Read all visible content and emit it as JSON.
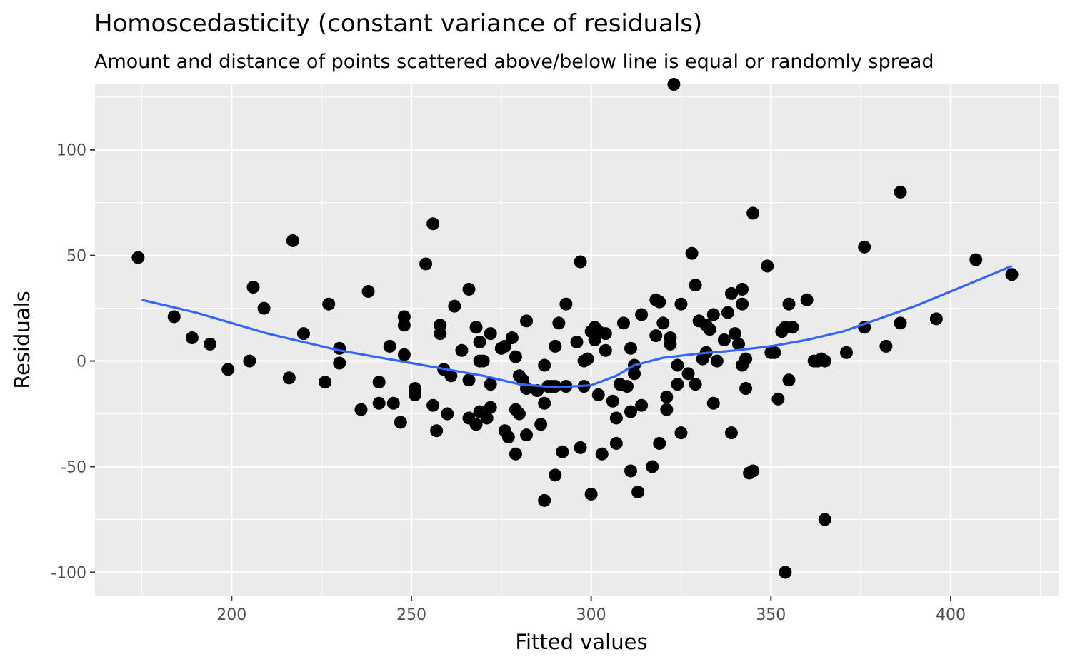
{
  "chart_data": {
    "type": "scatter",
    "title": "Homoscedasticity (constant variance of residuals)",
    "subtitle": "Amount and distance of points scattered above/below line is equal or randomly spread",
    "xlabel": "Fitted values",
    "ylabel": "Residuals",
    "xlim": [
      162,
      430
    ],
    "ylim": [
      -111,
      131
    ],
    "x_ticks": [
      200,
      250,
      300,
      350,
      400
    ],
    "x_tick_labels": [
      "200",
      "250",
      "300",
      "350",
      "400"
    ],
    "y_ticks": [
      -100,
      -50,
      0,
      50,
      100
    ],
    "y_tick_labels": [
      "-100",
      "-50",
      "0",
      "50",
      "100"
    ],
    "grid": true,
    "legend": "none",
    "colors": {
      "panel": "#ebebeb",
      "grid": "#ffffff",
      "points": "#000000",
      "smooth": "#3366ff"
    },
    "series": [
      {
        "type": "scatter",
        "points": [
          [
            174,
            49
          ],
          [
            184,
            21
          ],
          [
            189,
            11
          ],
          [
            194,
            8
          ],
          [
            199,
            -4
          ],
          [
            205,
            0
          ],
          [
            206,
            35
          ],
          [
            209,
            25
          ],
          [
            216,
            -8
          ],
          [
            217,
            57
          ],
          [
            220,
            13
          ],
          [
            226,
            -10
          ],
          [
            227,
            27
          ],
          [
            230,
            6
          ],
          [
            230,
            -1
          ],
          [
            236,
            -23
          ],
          [
            238,
            33
          ],
          [
            241,
            -10
          ],
          [
            241,
            -20
          ],
          [
            244,
            7
          ],
          [
            245,
            -20
          ],
          [
            247,
            -29
          ],
          [
            248,
            21
          ],
          [
            248,
            17
          ],
          [
            248,
            3
          ],
          [
            251,
            -13
          ],
          [
            251,
            -16
          ],
          [
            254,
            46
          ],
          [
            256,
            -21
          ],
          [
            256,
            65
          ],
          [
            257,
            -33
          ],
          [
            258,
            13
          ],
          [
            258,
            17
          ],
          [
            259,
            -4
          ],
          [
            260,
            -25
          ],
          [
            261,
            -7
          ],
          [
            262,
            26
          ],
          [
            264,
            5
          ],
          [
            266,
            -9
          ],
          [
            266,
            34
          ],
          [
            266,
            -27
          ],
          [
            268,
            -30
          ],
          [
            268,
            16
          ],
          [
            269,
            9
          ],
          [
            269,
            -24
          ],
          [
            269,
            0
          ],
          [
            270,
            0
          ],
          [
            271,
            -27
          ],
          [
            272,
            13
          ],
          [
            272,
            -11
          ],
          [
            272,
            -22
          ],
          [
            275,
            6
          ],
          [
            276,
            7
          ],
          [
            276,
            -33
          ],
          [
            277,
            -36
          ],
          [
            278,
            11
          ],
          [
            279,
            -23
          ],
          [
            279,
            2
          ],
          [
            279,
            -44
          ],
          [
            280,
            -25
          ],
          [
            280,
            -7
          ],
          [
            281,
            -9
          ],
          [
            282,
            -13
          ],
          [
            282,
            19
          ],
          [
            282,
            -35
          ],
          [
            285,
            -14
          ],
          [
            286,
            -30
          ],
          [
            287,
            -2
          ],
          [
            287,
            -20
          ],
          [
            287,
            -66
          ],
          [
            288,
            -12
          ],
          [
            289,
            -12
          ],
          [
            290,
            -54
          ],
          [
            290,
            -12
          ],
          [
            290,
            7
          ],
          [
            291,
            18
          ],
          [
            292,
            -43
          ],
          [
            293,
            27
          ],
          [
            293,
            -12
          ],
          [
            296,
            9
          ],
          [
            297,
            -41
          ],
          [
            297,
            47
          ],
          [
            298,
            -12
          ],
          [
            298,
            0
          ],
          [
            299,
            1
          ],
          [
            300,
            -63
          ],
          [
            300,
            14
          ],
          [
            301,
            10
          ],
          [
            301,
            16
          ],
          [
            302,
            14
          ],
          [
            302,
            -16
          ],
          [
            303,
            -44
          ],
          [
            304,
            5
          ],
          [
            304,
            13
          ],
          [
            306,
            -19
          ],
          [
            307,
            -27
          ],
          [
            307,
            -39
          ],
          [
            308,
            -11
          ],
          [
            309,
            18
          ],
          [
            310,
            -12
          ],
          [
            311,
            -52
          ],
          [
            311,
            6
          ],
          [
            311,
            -24
          ],
          [
            312,
            -6
          ],
          [
            312,
            -2
          ],
          [
            313,
            -62
          ],
          [
            314,
            22
          ],
          [
            314,
            -21
          ],
          [
            317,
            -50
          ],
          [
            318,
            12
          ],
          [
            318,
            29
          ],
          [
            319,
            -39
          ],
          [
            319,
            28
          ],
          [
            320,
            18
          ],
          [
            321,
            -17
          ],
          [
            321,
            -23
          ],
          [
            322,
            11
          ],
          [
            322,
            8
          ],
          [
            323,
            131
          ],
          [
            324,
            -11
          ],
          [
            324,
            -2
          ],
          [
            325,
            27
          ],
          [
            325,
            -34
          ],
          [
            327,
            -6
          ],
          [
            328,
            51
          ],
          [
            329,
            36
          ],
          [
            329,
            -11
          ],
          [
            330,
            19
          ],
          [
            331,
            1
          ],
          [
            332,
            17
          ],
          [
            332,
            4
          ],
          [
            333,
            15
          ],
          [
            334,
            22
          ],
          [
            334,
            -20
          ],
          [
            335,
            0
          ],
          [
            337,
            10
          ],
          [
            338,
            23
          ],
          [
            339,
            32
          ],
          [
            339,
            -34
          ],
          [
            340,
            13
          ],
          [
            341,
            8
          ],
          [
            342,
            -2
          ],
          [
            342,
            27
          ],
          [
            342,
            34
          ],
          [
            343,
            1
          ],
          [
            343,
            -13
          ],
          [
            344,
            -53
          ],
          [
            345,
            70
          ],
          [
            345,
            -52
          ],
          [
            349,
            45
          ],
          [
            350,
            4
          ],
          [
            351,
            4
          ],
          [
            352,
            -18
          ],
          [
            353,
            14
          ],
          [
            354,
            16
          ],
          [
            354,
            -100
          ],
          [
            355,
            27
          ],
          [
            355,
            -9
          ],
          [
            356,
            16
          ],
          [
            360,
            29
          ],
          [
            362,
            0
          ],
          [
            363,
            0
          ],
          [
            364,
            1
          ],
          [
            365,
            0
          ],
          [
            365,
            -75
          ],
          [
            371,
            4
          ],
          [
            376,
            54
          ],
          [
            376,
            16
          ],
          [
            382,
            7
          ],
          [
            386,
            80
          ],
          [
            386,
            18
          ],
          [
            396,
            20
          ],
          [
            407,
            48
          ],
          [
            417,
            41
          ]
        ]
      },
      {
        "type": "line",
        "method": "loess",
        "points": [
          [
            175,
            29
          ],
          [
            190,
            23
          ],
          [
            200,
            18
          ],
          [
            210,
            13
          ],
          [
            220,
            9
          ],
          [
            230,
            5
          ],
          [
            240,
            2
          ],
          [
            250,
            -1
          ],
          [
            260,
            -4
          ],
          [
            270,
            -7
          ],
          [
            280,
            -11
          ],
          [
            290,
            -12.5
          ],
          [
            300,
            -11.5
          ],
          [
            307,
            -7
          ],
          [
            312,
            -2
          ],
          [
            320,
            1.5
          ],
          [
            330,
            3.5
          ],
          [
            340,
            5
          ],
          [
            350,
            7
          ],
          [
            360,
            10
          ],
          [
            370,
            14
          ],
          [
            380,
            20
          ],
          [
            390,
            26
          ],
          [
            400,
            33
          ],
          [
            410,
            40
          ],
          [
            417,
            45
          ]
        ]
      }
    ]
  }
}
